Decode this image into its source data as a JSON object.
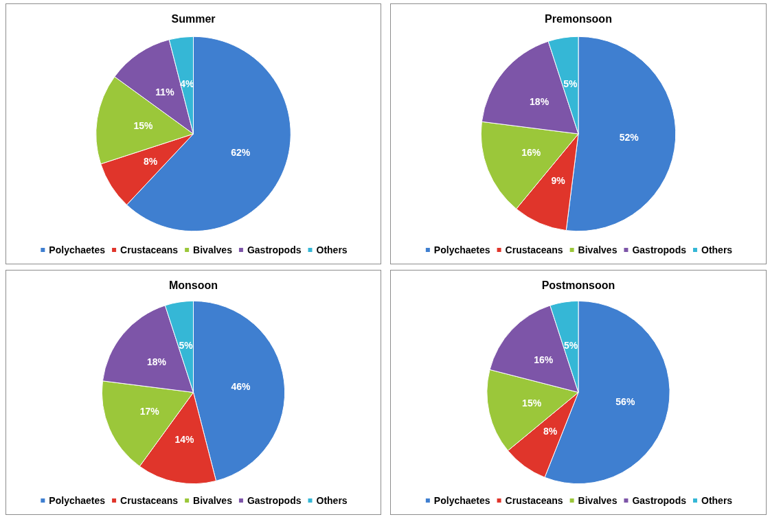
{
  "chart_data": [
    {
      "type": "pie",
      "title": "Summer",
      "categories": [
        "Polychaetes",
        "Crustaceans",
        "Bivalves",
        "Gastropods",
        "Others"
      ],
      "values": [
        62,
        8,
        15,
        11,
        4
      ],
      "value_labels": [
        "62%",
        "8%",
        "15%",
        "11%",
        "4%"
      ],
      "colors": [
        "#3f7fd0",
        "#e0352b",
        "#9bc73a",
        "#7d55a8",
        "#35b7d6"
      ],
      "legend": "bottom"
    },
    {
      "type": "pie",
      "title": "Premonsoon",
      "categories": [
        "Polychaetes",
        "Crustaceans",
        "Bivalves",
        "Gastropods",
        "Others"
      ],
      "values": [
        52,
        9,
        16,
        18,
        5
      ],
      "value_labels": [
        "52%",
        "9%",
        "16%",
        "18%",
        "5%"
      ],
      "colors": [
        "#3f7fd0",
        "#e0352b",
        "#9bc73a",
        "#7d55a8",
        "#35b7d6"
      ],
      "legend": "bottom"
    },
    {
      "type": "pie",
      "title": "Monsoon",
      "categories": [
        "Polychaetes",
        "Crustaceans",
        "Bivalves",
        "Gastropods",
        "Others"
      ],
      "values": [
        46,
        14,
        17,
        18,
        5
      ],
      "value_labels": [
        "46%",
        "14%",
        "17%",
        "18%",
        "5%"
      ],
      "colors": [
        "#3f7fd0",
        "#e0352b",
        "#9bc73a",
        "#7d55a8",
        "#35b7d6"
      ],
      "legend": "bottom"
    },
    {
      "type": "pie",
      "title": "Postmonsoon",
      "categories": [
        "Polychaetes",
        "Crustaceans",
        "Bivalves",
        "Gastropods",
        "Others"
      ],
      "values": [
        56,
        8,
        15,
        16,
        5
      ],
      "value_labels": [
        "56%",
        "8%",
        "15%",
        "16%",
        "5%"
      ],
      "colors": [
        "#3f7fd0",
        "#e0352b",
        "#9bc73a",
        "#7d55a8",
        "#35b7d6"
      ],
      "legend": "bottom"
    }
  ]
}
